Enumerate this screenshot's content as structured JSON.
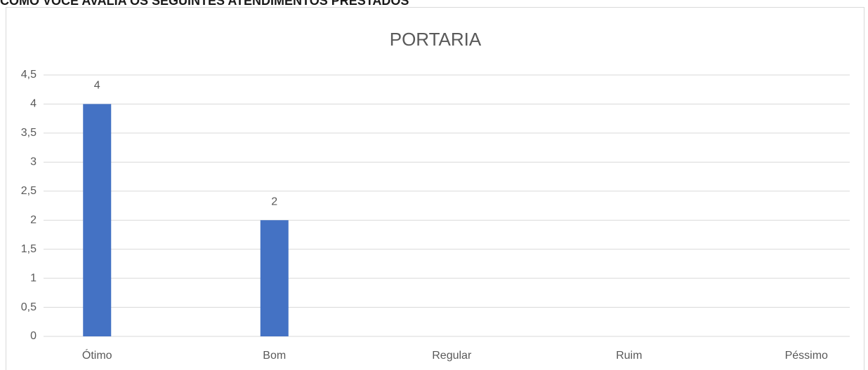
{
  "header": {
    "title": "COMO VOCÊ AVALIA OS SEGUINTES ATENDIMENTOS PRESTADOS"
  },
  "chart_data": {
    "type": "bar",
    "title": "PORTARIA",
    "categories": [
      "Ótimo",
      "Bom",
      "Regular",
      "Ruim",
      "Péssimo"
    ],
    "values": [
      4,
      2,
      null,
      null,
      null
    ],
    "color": "#4472c4",
    "ylim": [
      0,
      4.5
    ],
    "yticks": [
      0,
      {
        "value": 0.5,
        "label": "0,5"
      },
      1,
      {
        "value": 1.5,
        "label": "1,5"
      },
      2,
      {
        "value": 2.5,
        "label": "2,5"
      },
      3,
      {
        "value": 3.5,
        "label": "3,5"
      },
      4,
      {
        "value": 4.5,
        "label": "4,5"
      }
    ],
    "grid": true
  }
}
